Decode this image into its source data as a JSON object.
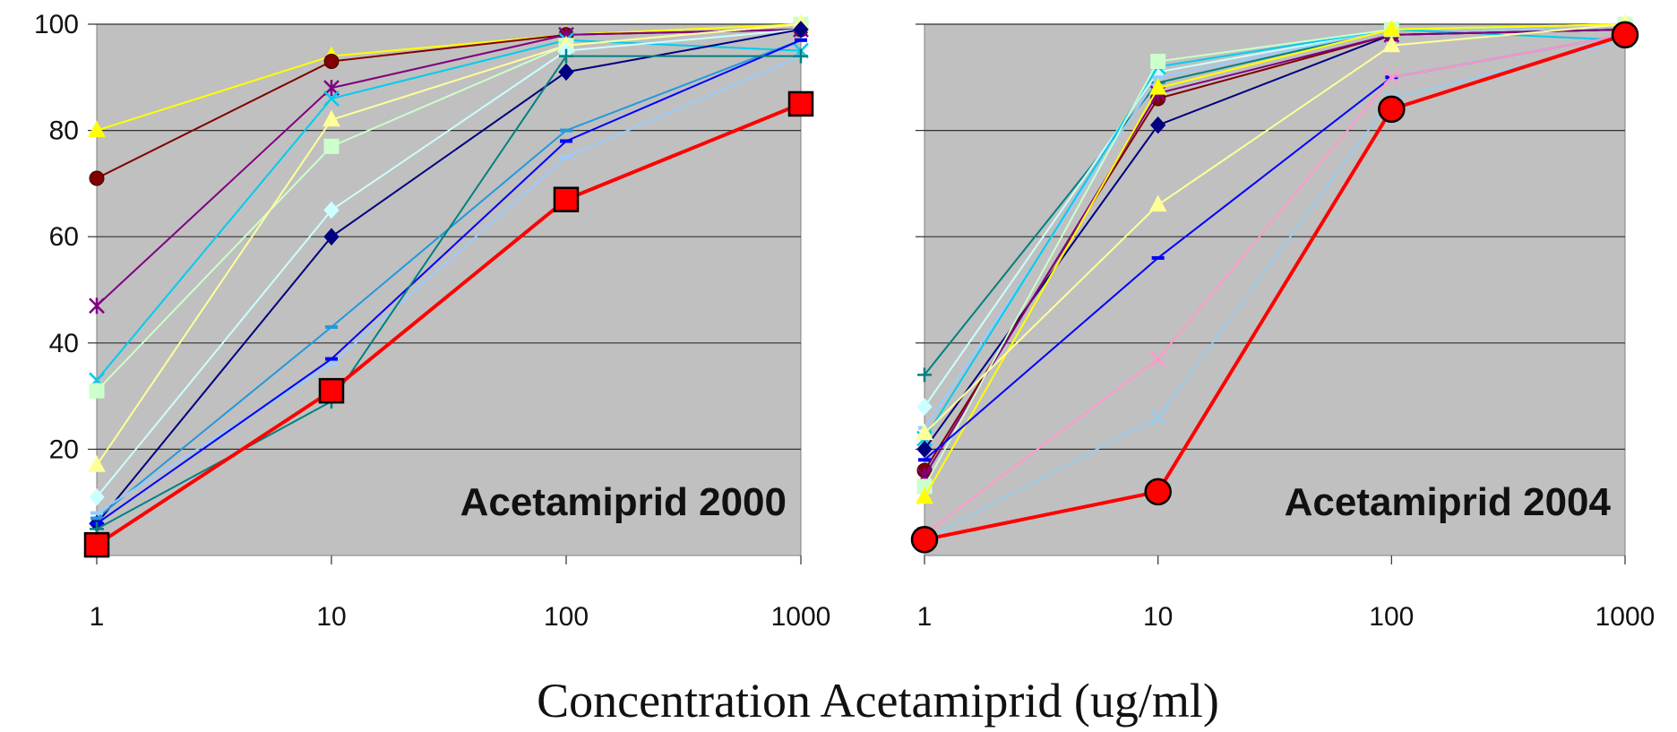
{
  "xlabel": "Concentration Acetamiprid (ug/ml)",
  "chart_data": [
    {
      "type": "line",
      "title": "Acetamiprid 2000",
      "x": [
        1,
        10,
        100,
        1000
      ],
      "x_scale": "log",
      "xlim": [
        1,
        1000
      ],
      "ylim": [
        0,
        100
      ],
      "yticks": [
        20,
        40,
        60,
        80,
        100
      ],
      "xticks": [
        "1",
        "10",
        "100",
        "1000"
      ],
      "grid": true,
      "background": "#c0c0c0",
      "xlabel": "Concentration Acetamiprid (ug/ml)",
      "series": [
        {
          "color": "#ffff00",
          "marker": "triangle",
          "bold": false,
          "values": [
            80,
            94,
            98,
            100
          ]
        },
        {
          "color": "#800000",
          "marker": "circle",
          "bold": false,
          "values": [
            71,
            93,
            98,
            99
          ]
        },
        {
          "color": "#800080",
          "marker": "star",
          "bold": false,
          "values": [
            47,
            88,
            98,
            99
          ]
        },
        {
          "color": "#00ccee",
          "marker": "x",
          "bold": false,
          "values": [
            33,
            86,
            97,
            95
          ]
        },
        {
          "color": "#ccffcc",
          "marker": "square",
          "bold": false,
          "values": [
            31,
            77,
            96,
            100
          ]
        },
        {
          "color": "#ffff99",
          "marker": "triangle",
          "bold": false,
          "values": [
            17,
            82,
            96,
            100
          ]
        },
        {
          "color": "#ccffff",
          "marker": "diamond",
          "bold": false,
          "values": [
            11,
            65,
            95,
            99
          ]
        },
        {
          "color": "#000080",
          "marker": "diamond",
          "bold": false,
          "values": [
            6,
            60,
            91,
            99
          ]
        },
        {
          "color": "#2299dd",
          "marker": "dash",
          "bold": false,
          "values": [
            7,
            43,
            80,
            97
          ]
        },
        {
          "color": "#99ccff",
          "marker": "dash",
          "bold": false,
          "values": [
            8,
            36,
            75,
            94
          ]
        },
        {
          "color": "#0000ff",
          "marker": "dash",
          "bold": false,
          "values": [
            6,
            37,
            78,
            97
          ]
        },
        {
          "color": "#008080",
          "marker": "plus",
          "bold": false,
          "values": [
            5,
            29,
            94,
            94
          ]
        },
        {
          "color": "#ff0000",
          "marker": "square",
          "bold": true,
          "values": [
            2,
            31,
            67,
            85
          ]
        }
      ]
    },
    {
      "type": "line",
      "title": "Acetamiprid 2004",
      "x": [
        1,
        10,
        100,
        1000
      ],
      "x_scale": "log",
      "xlim": [
        1,
        1000
      ],
      "ylim": [
        0,
        100
      ],
      "xticks": [
        "1",
        "10",
        "100",
        "1000"
      ],
      "grid": true,
      "background": "#c0c0c0",
      "series": [
        {
          "color": "#008080",
          "marker": "plus",
          "bold": false,
          "values": [
            34,
            89,
            99,
            99
          ]
        },
        {
          "color": "#ccffff",
          "marker": "diamond",
          "bold": false,
          "values": [
            28,
            91,
            99,
            99
          ]
        },
        {
          "color": "#99ccff",
          "marker": "dash",
          "bold": false,
          "values": [
            24,
            90,
            99,
            99
          ]
        },
        {
          "color": "#00ccee",
          "marker": "x",
          "bold": false,
          "values": [
            22,
            92,
            99,
            97
          ]
        },
        {
          "color": "#000080",
          "marker": "diamond",
          "bold": false,
          "values": [
            20,
            81,
            98,
            99
          ]
        },
        {
          "color": "#800000",
          "marker": "circle",
          "bold": false,
          "values": [
            16,
            86,
            98,
            99
          ]
        },
        {
          "color": "#800080",
          "marker": "star",
          "bold": false,
          "values": [
            15,
            87,
            98,
            99
          ]
        },
        {
          "color": "#ccffcc",
          "marker": "square",
          "bold": false,
          "values": [
            13,
            93,
            99,
            100
          ]
        },
        {
          "color": "#ffff00",
          "marker": "triangle",
          "bold": false,
          "values": [
            11,
            88,
            99,
            100
          ]
        },
        {
          "color": "#0000ff",
          "marker": "dash",
          "bold": false,
          "values": [
            18,
            56,
            90,
            98
          ]
        },
        {
          "color": "#ffff99",
          "marker": "triangle",
          "bold": false,
          "values": [
            23,
            66,
            96,
            100
          ]
        },
        {
          "color": "#ff99cc",
          "marker": "x",
          "bold": false,
          "values": [
            4,
            37,
            90,
            98
          ]
        },
        {
          "color": "#99ccee",
          "marker": "x",
          "bold": false,
          "values": [
            3,
            26,
            86,
            97
          ]
        },
        {
          "color": "#ff0000",
          "marker": "circle",
          "bold": true,
          "values": [
            3,
            12,
            84,
            98
          ]
        }
      ]
    }
  ]
}
